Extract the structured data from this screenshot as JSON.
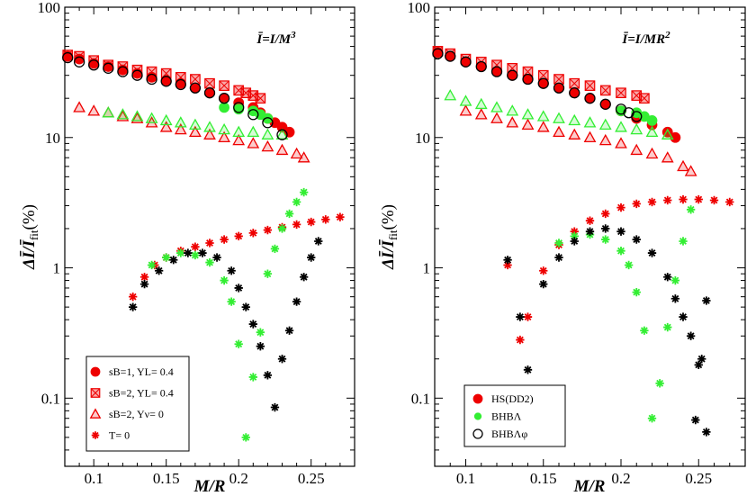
{
  "chart_data": [
    {
      "type": "scatter",
      "title": "Ī=I/M³",
      "xlabel": "M/R",
      "ylabel": "ΔĪ/Ī_fit(%)",
      "xlim": [
        0.08,
        0.28
      ],
      "ylim": [
        0.03,
        100
      ],
      "yscale": "log",
      "x_ticks": [
        0.1,
        0.15,
        0.2,
        0.25
      ],
      "x_tick_labels": [
        "0.1",
        "0.15",
        "0.2",
        "0.25"
      ],
      "y_ticks": [
        0.1,
        1,
        10,
        100
      ],
      "y_tick_labels": [
        "0.1",
        "1",
        "10",
        "100"
      ],
      "legend_position": "bottom-left",
      "series": [
        {
          "name": "s_B=1, Y_L=0.4",
          "legend_label": "sB=1, YL= 0.4",
          "color": "#ee0000",
          "marker": "filled-circle",
          "role": "top",
          "x": [
            0.082,
            0.09,
            0.1,
            0.11,
            0.12,
            0.13,
            0.14,
            0.15,
            0.16,
            0.17,
            0.18,
            0.19,
            0.2,
            0.21,
            0.215,
            0.22,
            0.225,
            0.23,
            0.235
          ],
          "y": [
            42,
            40,
            37,
            35,
            33,
            31,
            29,
            27.5,
            26,
            24,
            22,
            20,
            18.5,
            17,
            15.5,
            14,
            13,
            12,
            11
          ]
        },
        {
          "name": "s_B=2, Y_L=0.4",
          "legend_label": "sB=2, YL= 0.4",
          "color": "#ee0000",
          "marker": "crossed-square",
          "role": "top",
          "x": [
            0.082,
            0.09,
            0.1,
            0.11,
            0.12,
            0.13,
            0.14,
            0.15,
            0.16,
            0.17,
            0.18,
            0.19,
            0.2,
            0.205,
            0.21,
            0.215
          ],
          "y": [
            43,
            42,
            39,
            36,
            35,
            33,
            32,
            31,
            29,
            28,
            26,
            25,
            23,
            22,
            21,
            20
          ]
        },
        {
          "name": "s_B=2, Y_v=0",
          "legend_label": "sB=2, Yν= 0",
          "color": "#ee0000",
          "marker": "triangle",
          "role": "bottom",
          "x": [
            0.09,
            0.1,
            0.11,
            0.12,
            0.13,
            0.14,
            0.15,
            0.16,
            0.17,
            0.18,
            0.19,
            0.2,
            0.21,
            0.22,
            0.23,
            0.24,
            0.245
          ],
          "y": [
            17,
            16,
            15.5,
            14.5,
            14,
            13,
            12,
            11.5,
            11,
            10.5,
            10,
            9.5,
            9,
            8.5,
            8,
            7.5,
            7
          ]
        },
        {
          "name": "T=0",
          "legend_label": "T= 0",
          "color": "#ee0000",
          "marker": "asterisk",
          "role": "curve",
          "x": [
            0.127,
            0.135,
            0.142,
            0.15,
            0.16,
            0.17,
            0.18,
            0.19,
            0.2,
            0.21,
            0.22,
            0.23,
            0.24,
            0.25,
            0.26,
            0.27
          ],
          "y": [
            0.6,
            0.85,
            1.05,
            1.2,
            1.35,
            1.45,
            1.55,
            1.65,
            1.75,
            1.85,
            1.95,
            2.05,
            2.15,
            2.25,
            2.35,
            2.45
          ]
        },
        {
          "name": "s_B=1 (green)",
          "color": "#33ee33",
          "marker": "filled-circle",
          "role": "top",
          "x": [
            0.19,
            0.2,
            0.21,
            0.215,
            0.22
          ],
          "y": [
            17,
            16.5,
            16,
            15,
            14
          ]
        },
        {
          "name": "s_B=2 Y_v=0 (green)",
          "color": "#33ee33",
          "marker": "triangle",
          "role": "bottom",
          "x": [
            0.11,
            0.12,
            0.13,
            0.14,
            0.15,
            0.16,
            0.17,
            0.18,
            0.19,
            0.2,
            0.21,
            0.22,
            0.23
          ],
          "y": [
            15.5,
            15,
            14.5,
            14,
            13.5,
            13,
            12.5,
            12,
            11.5,
            11,
            11,
            10.5,
            10.5
          ]
        },
        {
          "name": "T=0 (green)",
          "color": "#33ee33",
          "marker": "asterisk",
          "role": "curve",
          "x": [
            0.14,
            0.15,
            0.16,
            0.17,
            0.18,
            0.19,
            0.195,
            0.2,
            0.205,
            0.21,
            0.215,
            0.22,
            0.225,
            0.23,
            0.235,
            0.24,
            0.245
          ],
          "y": [
            1.05,
            1.2,
            1.3,
            1.25,
            1.1,
            0.8,
            0.55,
            0.26,
            0.05,
            0.145,
            0.32,
            0.9,
            1.4,
            2.0,
            2.6,
            3.2,
            3.8
          ]
        },
        {
          "name": "black open circle",
          "color": "#000000",
          "marker": "open-circle",
          "role": "top",
          "x": [
            0.082,
            0.09,
            0.1,
            0.11,
            0.12,
            0.13,
            0.14,
            0.15,
            0.16,
            0.17,
            0.18,
            0.19,
            0.2,
            0.21,
            0.22,
            0.23
          ],
          "y": [
            41,
            38,
            36,
            34,
            32,
            30,
            28,
            27,
            25.5,
            24,
            22,
            20,
            17,
            15,
            13,
            10.5
          ]
        },
        {
          "name": "black T=0",
          "color": "#000000",
          "marker": "asterisk",
          "role": "curve",
          "x": [
            0.127,
            0.135,
            0.145,
            0.155,
            0.165,
            0.175,
            0.185,
            0.195,
            0.2,
            0.205,
            0.21,
            0.215,
            0.22,
            0.225,
            0.23,
            0.235,
            0.24,
            0.245,
            0.25,
            0.255
          ],
          "y": [
            0.5,
            0.75,
            0.95,
            1.15,
            1.3,
            1.3,
            1.2,
            0.95,
            0.7,
            0.5,
            0.37,
            0.25,
            0.15,
            0.085,
            0.2,
            0.33,
            0.55,
            0.85,
            1.2,
            1.6
          ]
        }
      ],
      "annotations": []
    },
    {
      "type": "scatter",
      "title": "Ī=I/MR²",
      "xlabel": "M/R",
      "ylabel": "ΔĪ/Ī_fit(%)",
      "xlim": [
        0.08,
        0.28
      ],
      "ylim": [
        0.03,
        100
      ],
      "yscale": "log",
      "x_ticks": [
        0.1,
        0.15,
        0.2,
        0.25
      ],
      "x_tick_labels": [
        "0.1",
        "0.15",
        "0.2",
        "0.25"
      ],
      "y_ticks": [
        0.1,
        1,
        10,
        100
      ],
      "y_tick_labels": [
        "0.1",
        "1",
        "10",
        "100"
      ],
      "legend_position": "bottom-left",
      "series": [
        {
          "name": "HS(DD2)",
          "legend_label": "HS(DD2)",
          "color": "#ee0000",
          "marker": "filled-circle",
          "role": "top",
          "x": [
            0.082,
            0.09,
            0.1,
            0.11,
            0.12,
            0.13,
            0.14,
            0.15,
            0.16,
            0.17,
            0.18,
            0.19,
            0.2,
            0.21,
            0.22,
            0.23,
            0.235
          ],
          "y": [
            45,
            42,
            38,
            35,
            32,
            30,
            28,
            26,
            24,
            22,
            20,
            18,
            16,
            14,
            12.5,
            11,
            10
          ]
        },
        {
          "name": "red crossed squares",
          "color": "#ee0000",
          "marker": "crossed-square",
          "role": "top",
          "x": [
            0.082,
            0.09,
            0.1,
            0.11,
            0.12,
            0.13,
            0.14,
            0.15,
            0.16,
            0.17,
            0.18,
            0.19,
            0.2,
            0.21,
            0.215
          ],
          "y": [
            46,
            44,
            40,
            38,
            36,
            34,
            32,
            30,
            28,
            26,
            25,
            23,
            22,
            21,
            20
          ]
        },
        {
          "name": "red triangles",
          "color": "#ee0000",
          "marker": "triangle",
          "role": "bottom",
          "x": [
            0.1,
            0.11,
            0.12,
            0.13,
            0.14,
            0.15,
            0.16,
            0.17,
            0.18,
            0.19,
            0.2,
            0.21,
            0.22,
            0.23,
            0.24,
            0.245
          ],
          "y": [
            16,
            15,
            14,
            13,
            12.5,
            12,
            11,
            10.5,
            10,
            9.5,
            9,
            8,
            7.5,
            7,
            6,
            5.5
          ]
        },
        {
          "name": "red asterisks",
          "color": "#ee0000",
          "marker": "asterisk",
          "role": "curve",
          "x": [
            0.127,
            0.135,
            0.14,
            0.15,
            0.16,
            0.17,
            0.18,
            0.19,
            0.2,
            0.21,
            0.22,
            0.23,
            0.24,
            0.25,
            0.26,
            0.27
          ],
          "y": [
            1.05,
            0.28,
            0.42,
            0.95,
            1.5,
            1.9,
            2.3,
            2.6,
            2.9,
            3.1,
            3.2,
            3.3,
            3.35,
            3.35,
            3.3,
            3.2
          ]
        },
        {
          "name": "BHBΛ",
          "legend_label": "BHBΛ",
          "color": "#33ee33",
          "marker": "asterisk",
          "role": "curve",
          "x": [
            0.16,
            0.17,
            0.18,
            0.19,
            0.2,
            0.205,
            0.21,
            0.215,
            0.22,
            0.225,
            0.23,
            0.235,
            0.24,
            0.245
          ],
          "y": [
            1.55,
            1.75,
            1.8,
            1.65,
            1.35,
            1.05,
            0.65,
            0.33,
            0.07,
            0.13,
            0.35,
            0.8,
            1.6,
            2.8
          ]
        },
        {
          "name": "BHBΛ triangles",
          "color": "#33ee33",
          "marker": "triangle",
          "role": "bottom",
          "x": [
            0.09,
            0.1,
            0.11,
            0.12,
            0.13,
            0.14,
            0.15,
            0.16,
            0.17,
            0.18,
            0.19,
            0.2,
            0.21,
            0.22,
            0.23
          ],
          "y": [
            21,
            19,
            18,
            17,
            16,
            15,
            14.5,
            14,
            13.5,
            13,
            12.5,
            12,
            11.5,
            11,
            10.5
          ]
        },
        {
          "name": "BHBΛ circles",
          "color": "#33ee33",
          "marker": "filled-circle",
          "role": "top",
          "x": [
            0.2,
            0.21,
            0.215,
            0.22
          ],
          "y": [
            16,
            15.5,
            14.5,
            13.5
          ]
        },
        {
          "name": "BHBΛφ",
          "legend_label": "BHBΛφ",
          "color": "#000000",
          "marker": "open-circle",
          "role": "top",
          "x": [
            0.082,
            0.09,
            0.1,
            0.11,
            0.12,
            0.13,
            0.14,
            0.15,
            0.16,
            0.17,
            0.18,
            0.19,
            0.2,
            0.205,
            0.21
          ],
          "y": [
            44,
            42,
            38,
            35,
            32,
            30,
            28,
            26,
            24,
            22,
            20,
            18,
            16.5,
            15.5,
            14.5
          ]
        },
        {
          "name": "BHBΛφ asterisks",
          "color": "#000000",
          "marker": "asterisk",
          "role": "curve",
          "x": [
            0.127,
            0.135,
            0.14,
            0.15,
            0.16,
            0.17,
            0.18,
            0.19,
            0.2,
            0.21,
            0.22,
            0.23,
            0.235,
            0.24,
            0.245,
            0.25,
            0.255
          ],
          "y": [
            1.15,
            0.42,
            0.165,
            0.75,
            1.2,
            1.6,
            1.9,
            2.0,
            1.9,
            1.65,
            1.3,
            0.85,
            0.58,
            0.42,
            0.3,
            0.18,
            0.055
          ]
        },
        {
          "name": "BHBΛφ asterisks extra",
          "color": "#000000",
          "marker": "asterisk",
          "role": "curve",
          "x": [
            0.248,
            0.252,
            0.255
          ],
          "y": [
            0.068,
            0.2,
            0.56
          ]
        }
      ],
      "annotations": []
    }
  ],
  "legend_left": [
    {
      "marker": "filled-circle",
      "color": "#ee0000",
      "label": "sB=1, YL= 0.4"
    },
    {
      "marker": "crossed-square",
      "color": "#ee0000",
      "label": "sB=2, YL= 0.4"
    },
    {
      "marker": "triangle",
      "color": "#ee0000",
      "label": "sB=2, Yν= 0"
    },
    {
      "marker": "asterisk",
      "color": "#ee0000",
      "label": "T= 0"
    }
  ],
  "legend_right": [
    {
      "marker": "filled-circle",
      "color": "#ee0000",
      "label": "HS(DD2)"
    },
    {
      "marker": "small-dot",
      "color": "#33ee33",
      "label": "BHBΛ"
    },
    {
      "marker": "open-circle",
      "color": "#000000",
      "label": "BHBΛφ"
    }
  ]
}
